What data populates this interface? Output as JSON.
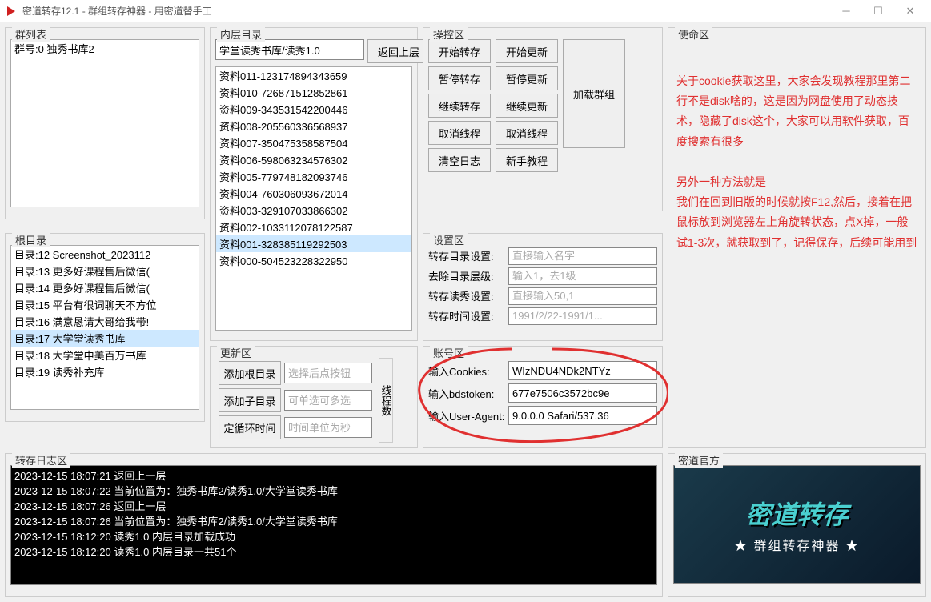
{
  "window": {
    "title": "密道转存12.1 - 群组转存神器 - 用密道替手工",
    "icon_color": "#d02020"
  },
  "groups": {
    "qun": {
      "title": "群列表",
      "items": [
        "群号:0 独秀书库2"
      ]
    },
    "root": {
      "title": "根目录",
      "items": [
        "目录:12 Screenshot_2023112",
        "目录:13 更多好课程售后微信(",
        "目录:14 更多好课程售后微信(",
        "目录:15 平台有很词聊天不方位",
        "目录:16 满意恳请大哥给我带!",
        "目录:17 大学堂读秀书库",
        "目录:18 大学堂中美百万书库",
        "目录:19 读秀补充库"
      ],
      "selected_index": 5
    },
    "inner": {
      "title": "内层目录",
      "path": "学堂读秀书库/读秀1.0",
      "back_btn": "返回上层",
      "items": [
        "资料011-123174894343659",
        "资料010-726871512852861",
        "资料009-343531542200446",
        "资料008-205560336568937",
        "资料007-350475358587504",
        "资料006-598063234576302",
        "资料005-779748182093746",
        "资料004-760306093672014",
        "资料003-329107033866302",
        "资料002-1033112078122587",
        "资料001-328385119292503",
        "资料000-504523228322950"
      ],
      "selected_index": 10
    },
    "update": {
      "title": "更新区",
      "add_root": "添加根目录",
      "ph_root": "选择后点按钮",
      "add_sub": "添加子目录",
      "ph_sub": "可单选可多选",
      "loop_time": "定循环时间",
      "ph_time": "时间单位为秒",
      "thread_label": "线程数"
    },
    "ctrl": {
      "title": "操控区",
      "start_transfer": "开始转存",
      "start_update": "开始更新",
      "pause_transfer": "暂停转存",
      "pause_update": "暂停更新",
      "resume_transfer": "继续转存",
      "resume_update": "继续更新",
      "cancel_thread1": "取消线程",
      "cancel_thread2": "取消线程",
      "clear_log": "清空日志",
      "tutorial": "新手教程",
      "load_group": "加载群组"
    },
    "settings": {
      "title": "设置区",
      "save_dir_label": "转存目录设置:",
      "save_dir_ph": "直接输入名字",
      "remove_level_label": "去除目录层级:",
      "remove_level_ph": "输入1，去1级",
      "ds_label": "转存读秀设置:",
      "ds_ph": "直接输入50,1",
      "time_label": "转存时间设置:",
      "time_ph": "1991/2/22-1991/1..."
    },
    "account": {
      "title": "账号区",
      "cookies_label": "输入Cookies:",
      "cookies_val": "WIzNDU4NDk2NTYz",
      "bds_label": "输入bdstoken:",
      "bds_val": "677e7506c3572bc9e",
      "ua_label": "输入User-Agent:",
      "ua_val": "9.0.0.0 Safari/537.36"
    },
    "mission": {
      "title": "使命区",
      "paragraphs": [
        "关于cookie获取这里，大家会发现教程那里第二行不是disk啥的，这是因为网盘使用了动态技术，隐藏了disk这个，大家可以用软件获取，百度搜索有很多",
        "",
        "另外一种方法就是",
        "我们在回到旧版的时候就按F12,然后，接着在把鼠标放到浏览器左上角旋转状态，点X掉，一般试1-3次，就获取到了，记得保存，后续可能用到"
      ]
    },
    "log": {
      "title": "转存日志区",
      "lines": [
        "2023-12-15 18:07:21 返回上一层",
        "2023-12-15 18:07:22 当前位置为：独秀书库2/读秀1.0/大学堂读秀书库",
        "2023-12-15 18:07:26 返回上一层",
        "2023-12-15 18:07:26 当前位置为：独秀书库2/读秀1.0/大学堂读秀书库",
        "2023-12-15 18:12:20 读秀1.0 内层目录加载成功",
        "2023-12-15 18:12:20 读秀1.0 内层目录一共51个"
      ]
    },
    "official": {
      "title": "密道官方",
      "banner_line1": "密道转存",
      "banner_line2": "★ 群组转存神器 ★"
    }
  }
}
